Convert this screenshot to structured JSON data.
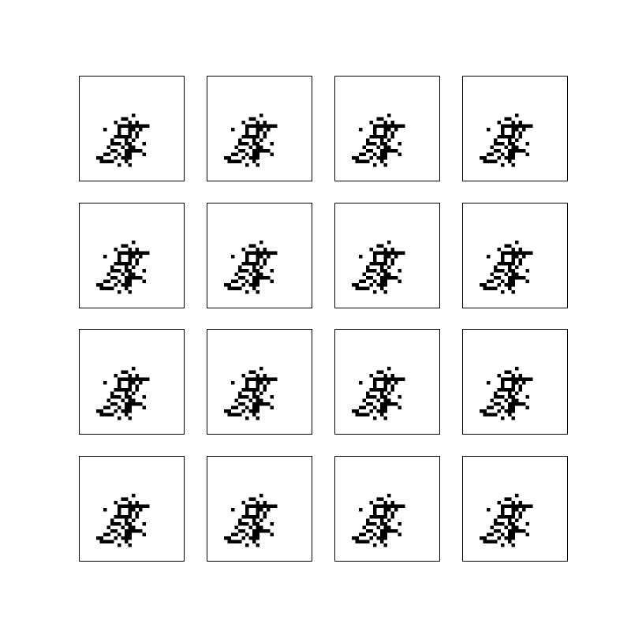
{
  "figure": {
    "rows": 4,
    "cols": 4,
    "pixel_color": "#000000",
    "background_color": "#ffffff",
    "border_color": "#000000",
    "sample_grid_size": 28,
    "sample_pixels": [
      [
        8,
        9
      ],
      [
        9,
        9
      ],
      [
        11,
        8
      ],
      [
        6,
        10
      ],
      [
        10,
        10
      ],
      [
        12,
        10
      ],
      [
        7,
        11
      ],
      [
        8,
        11
      ],
      [
        9,
        11
      ],
      [
        10,
        11
      ],
      [
        11,
        11
      ],
      [
        12,
        11
      ],
      [
        13,
        11
      ],
      [
        14,
        11
      ],
      [
        15,
        11
      ],
      [
        3,
        12
      ],
      [
        7,
        12
      ],
      [
        10,
        12
      ],
      [
        11,
        12
      ],
      [
        13,
        12
      ],
      [
        7,
        13
      ],
      [
        10,
        13
      ],
      [
        12,
        13
      ],
      [
        6,
        14
      ],
      [
        7,
        14
      ],
      [
        8,
        14
      ],
      [
        9,
        14
      ],
      [
        10,
        14
      ],
      [
        12,
        14
      ],
      [
        5,
        15
      ],
      [
        9,
        15
      ],
      [
        11,
        15
      ],
      [
        5,
        16
      ],
      [
        6,
        16
      ],
      [
        7,
        16
      ],
      [
        9,
        16
      ],
      [
        10,
        16
      ],
      [
        14,
        16
      ],
      [
        4,
        17
      ],
      [
        8,
        17
      ],
      [
        10,
        17
      ],
      [
        11,
        17
      ],
      [
        5,
        18
      ],
      [
        6,
        18
      ],
      [
        9,
        18
      ],
      [
        10,
        18
      ],
      [
        11,
        18
      ],
      [
        12,
        18
      ],
      [
        13,
        18
      ],
      [
        3,
        19
      ],
      [
        4,
        19
      ],
      [
        7,
        19
      ],
      [
        9,
        19
      ],
      [
        10,
        19
      ],
      [
        14,
        19
      ],
      [
        1,
        20
      ],
      [
        2,
        20
      ],
      [
        6,
        20
      ],
      [
        8,
        20
      ],
      [
        9,
        20
      ],
      [
        10,
        20
      ],
      [
        2,
        21
      ],
      [
        3,
        21
      ],
      [
        4,
        21
      ],
      [
        5,
        21
      ],
      [
        9,
        21
      ],
      [
        7,
        22
      ],
      [
        10,
        22
      ]
    ]
  }
}
